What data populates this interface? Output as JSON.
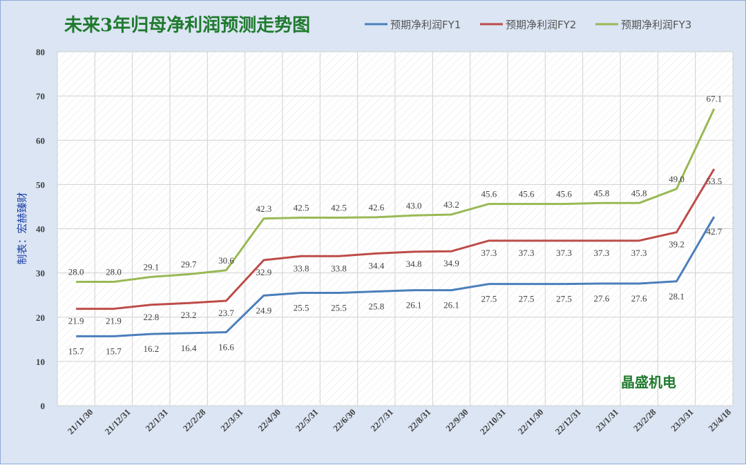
{
  "chart_data": {
    "type": "line",
    "title": "未来3年归母净利润预测走势图",
    "ylabel": "制表：宏赫臻财",
    "xlabel": "",
    "watermark": "晶盛机电",
    "ylim": [
      0,
      80
    ],
    "yticks": [
      "0",
      "10",
      "20",
      "30",
      "40",
      "50",
      "60",
      "70",
      "80"
    ],
    "grid": true,
    "legend_position": "top-right",
    "categories": [
      "21/11/30",
      "21/12/31",
      "22/1/31",
      "22/2/28",
      "22/3/31",
      "22/4/30",
      "22/5/31",
      "22/6/30",
      "22/7/31",
      "22/8/31",
      "22/9/30",
      "22/10/31",
      "22/11/30",
      "22/12/31",
      "23/1/31",
      "23/2/28",
      "23/3/31",
      "23/4/18"
    ],
    "series": [
      {
        "name": "预期净利润FY1",
        "color": "#4a7ebb",
        "values": [
          15.7,
          15.7,
          16.2,
          16.4,
          16.6,
          24.9,
          25.5,
          25.5,
          25.8,
          26.1,
          26.1,
          27.5,
          27.5,
          27.5,
          27.6,
          27.6,
          28.1,
          42.7
        ],
        "labels": [
          "15.7",
          "15.7",
          "16.2",
          "16.4",
          "16.6",
          "24.9",
          "25.5",
          "25.5",
          "25.8",
          "26.1",
          "26.1",
          "27.5",
          "27.5",
          "27.5",
          "27.6",
          "27.6",
          "28.1",
          "42.7"
        ]
      },
      {
        "name": "预期净利润FY2",
        "color": "#be4b48",
        "values": [
          21.9,
          21.9,
          22.8,
          23.2,
          23.7,
          32.9,
          33.8,
          33.8,
          34.4,
          34.8,
          34.9,
          37.3,
          37.3,
          37.3,
          37.3,
          37.3,
          39.2,
          53.5
        ],
        "labels": [
          "21.9",
          "21.9",
          "22.8",
          "23.2",
          "23.7",
          "32.9",
          "33.8",
          "33.8",
          "34.4",
          "34.8",
          "34.9",
          "37.3",
          "37.3",
          "37.3",
          "37.3",
          "37.3",
          "39.2",
          "53.5"
        ]
      },
      {
        "name": "预期净利润FY3",
        "color": "#98b954",
        "values": [
          28.0,
          28.0,
          29.1,
          29.7,
          30.6,
          42.3,
          42.5,
          42.5,
          42.6,
          43.0,
          43.2,
          45.6,
          45.6,
          45.6,
          45.8,
          45.8,
          49.0,
          67.1
        ],
        "labels": [
          "28.0",
          "28.0",
          "29.1",
          "29.7",
          "30.6",
          "42.3",
          "42.5",
          "42.5",
          "42.6",
          "43.0",
          "43.2",
          "45.6",
          "45.6",
          "45.6",
          "45.8",
          "45.8",
          "49.0",
          "67.1"
        ]
      }
    ]
  }
}
